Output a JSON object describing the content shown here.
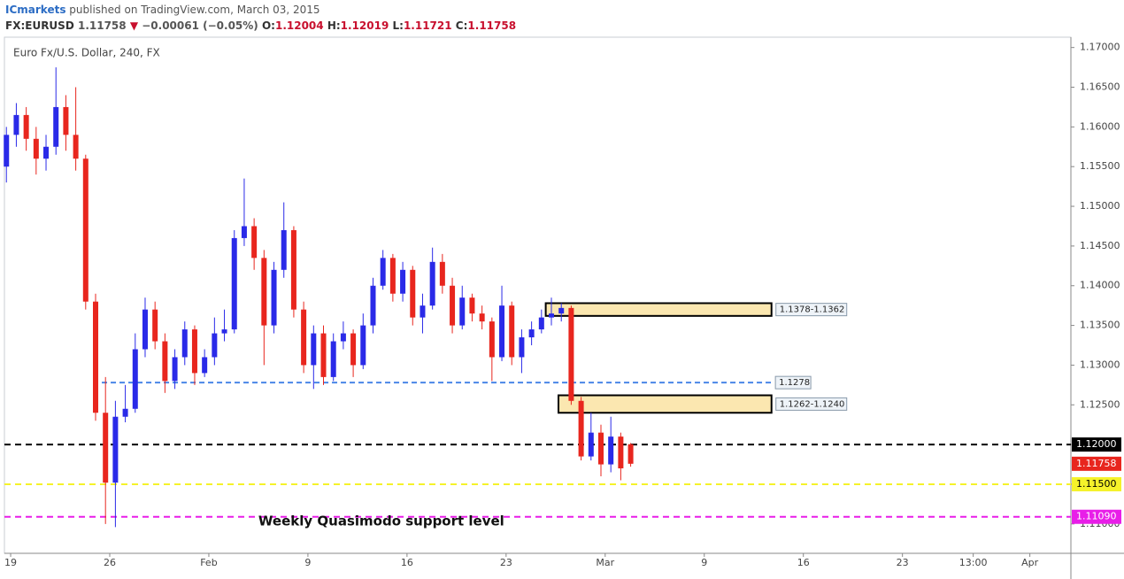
{
  "header": {
    "publisher": "ICmarkets",
    "published": "published on TradingView.com, March 03, 2015",
    "symbol": "FX:EURUSD",
    "change": "−0.00061 (−0.05%)",
    "ohlc_labels": [
      "O:",
      "H:",
      "L:",
      "C:"
    ]
  },
  "chart_data": {
    "type": "candlestick",
    "title": "Euro Fx/U.S. Dollar, 240, FX",
    "up_color": "#2a2ae8",
    "down_color": "#e8261e",
    "x": [
      -0.3,
      0.4,
      1.1,
      1.8,
      2.5,
      3.2,
      3.9,
      4.6,
      5.3,
      6,
      6.7,
      7.4,
      8.1,
      8.8,
      9.5,
      10.2,
      10.9,
      11.6,
      12.3,
      13,
      13.7,
      14.4,
      15.1,
      15.8,
      16.5,
      17.2,
      17.9,
      18.6,
      19.3,
      20,
      20.7,
      21.4,
      22.1,
      22.8,
      23.5,
      24.2,
      24.9,
      25.6,
      26.3,
      27,
      27.7,
      28.4,
      29.1,
      29.8,
      30.5,
      31.2,
      31.9,
      32.6,
      33.3,
      34,
      34.7,
      35.4,
      36.1,
      36.8,
      37.5,
      38.2,
      38.9,
      39.6,
      40.3,
      41,
      41.7,
      42.4,
      43.1,
      43.8
    ],
    "open": [
      1.155,
      1.159,
      1.1615,
      1.1585,
      1.156,
      1.1575,
      1.1625,
      1.159,
      1.156,
      1.138,
      1.124,
      1.1152,
      1.1235,
      1.1245,
      1.132,
      1.137,
      1.133,
      1.128,
      1.131,
      1.1345,
      1.129,
      1.131,
      1.134,
      1.1345,
      1.146,
      1.1475,
      1.1435,
      1.135,
      1.142,
      1.147,
      1.137,
      1.13,
      1.134,
      1.1285,
      1.133,
      1.134,
      1.13,
      1.135,
      1.14,
      1.1435,
      1.139,
      1.142,
      1.136,
      1.1375,
      1.143,
      1.14,
      1.135,
      1.1385,
      1.1365,
      1.1355,
      1.131,
      1.1375,
      1.131,
      1.1335,
      1.1345,
      1.136,
      1.1365,
      1.1372,
      1.1255,
      1.1185,
      1.1215,
      1.1175,
      1.121,
      1.12004
    ],
    "high": [
      1.16,
      1.163,
      1.1625,
      1.16,
      1.159,
      1.1675,
      1.164,
      1.165,
      1.1565,
      1.139,
      1.1285,
      1.1255,
      1.1275,
      1.134,
      1.1385,
      1.138,
      1.134,
      1.132,
      1.1355,
      1.135,
      1.132,
      1.136,
      1.137,
      1.147,
      1.1535,
      1.1485,
      1.1445,
      1.143,
      1.1505,
      1.1475,
      1.138,
      1.135,
      1.135,
      1.134,
      1.1355,
      1.1345,
      1.1365,
      1.141,
      1.1445,
      1.144,
      1.143,
      1.1425,
      1.139,
      1.1448,
      1.144,
      1.141,
      1.14,
      1.139,
      1.1375,
      1.136,
      1.14,
      1.138,
      1.1345,
      1.1355,
      1.137,
      1.1385,
      1.1378,
      1.1375,
      1.126,
      1.124,
      1.1225,
      1.1235,
      1.1215,
      1.12019
    ],
    "low": [
      1.153,
      1.1575,
      1.157,
      1.154,
      1.1545,
      1.1565,
      1.157,
      1.1545,
      1.137,
      1.123,
      1.11,
      1.1096,
      1.1228,
      1.124,
      1.131,
      1.132,
      1.1265,
      1.127,
      1.13,
      1.1275,
      1.1285,
      1.13,
      1.133,
      1.134,
      1.145,
      1.142,
      1.13,
      1.134,
      1.141,
      1.136,
      1.129,
      1.127,
      1.1275,
      1.128,
      1.132,
      1.1285,
      1.1295,
      1.134,
      1.1395,
      1.138,
      1.138,
      1.135,
      1.134,
      1.137,
      1.139,
      1.134,
      1.1345,
      1.1355,
      1.1345,
      1.128,
      1.1305,
      1.13,
      1.129,
      1.1325,
      1.134,
      1.135,
      1.1355,
      1.125,
      1.118,
      1.118,
      1.116,
      1.1165,
      1.1155,
      1.11721
    ],
    "close": [
      1.159,
      1.1615,
      1.1585,
      1.156,
      1.1575,
      1.1625,
      1.159,
      1.156,
      1.138,
      1.124,
      1.1152,
      1.1235,
      1.1245,
      1.132,
      1.137,
      1.133,
      1.128,
      1.131,
      1.1345,
      1.129,
      1.131,
      1.134,
      1.1345,
      1.146,
      1.1475,
      1.1435,
      1.135,
      1.142,
      1.147,
      1.137,
      1.13,
      1.134,
      1.1285,
      1.133,
      1.134,
      1.13,
      1.135,
      1.14,
      1.1435,
      1.139,
      1.142,
      1.136,
      1.1375,
      1.143,
      1.14,
      1.135,
      1.1385,
      1.1365,
      1.1355,
      1.131,
      1.1375,
      1.131,
      1.1335,
      1.1345,
      1.136,
      1.1365,
      1.1372,
      1.1255,
      1.1185,
      1.1215,
      1.1175,
      1.121,
      1.117,
      1.11758
    ],
    "xlim": [
      -0.44,
      74.9
    ],
    "xticks": [
      {
        "value": 0,
        "label": "19"
      },
      {
        "value": 7,
        "label": "26"
      },
      {
        "value": 14,
        "label": "Feb"
      },
      {
        "value": 21,
        "label": "9"
      },
      {
        "value": 28,
        "label": "16"
      },
      {
        "value": 35,
        "label": "23"
      },
      {
        "value": 42,
        "label": "Mar"
      },
      {
        "value": 49,
        "label": "9"
      },
      {
        "value": 56,
        "label": "16"
      },
      {
        "value": 63,
        "label": "23"
      },
      {
        "value": 68,
        "label": "13:00"
      },
      {
        "value": 72,
        "label": "Apr"
      }
    ],
    "ylim": [
      1.1063,
      1.1713
    ],
    "yticks": [
      {
        "value": 1.11,
        "label": "1.11000"
      },
      {
        "value": 1.115,
        "label": "1.11500"
      },
      {
        "value": 1.12,
        "label": "1.12000"
      },
      {
        "value": 1.125,
        "label": "1.12500"
      },
      {
        "value": 1.13,
        "label": "1.13000"
      },
      {
        "value": 1.135,
        "label": "1.13500"
      },
      {
        "value": 1.14,
        "label": "1.14000"
      },
      {
        "value": 1.145,
        "label": "1.14500"
      },
      {
        "value": 1.15,
        "label": "1.15000"
      },
      {
        "value": 1.155,
        "label": "1.15500"
      },
      {
        "value": 1.16,
        "label": "1.16000"
      },
      {
        "value": 1.165,
        "label": "1.16500"
      },
      {
        "value": 1.17,
        "label": "1.17000"
      }
    ],
    "levels": [
      {
        "price": 1.12,
        "label": "1.12000",
        "color": "#000000",
        "tag_text": "#ffffff"
      },
      {
        "price": 1.115,
        "label": "1.11500",
        "color": "#f5f22a",
        "tag_text": "#000000"
      },
      {
        "price": 1.1109,
        "label": "1.11090",
        "color": "#e81ee8",
        "tag_text": "#ffffff"
      }
    ],
    "lines": [
      {
        "price": 1.1278,
        "label": "1.1278",
        "color": "#4a86e8",
        "x": [
          6.44,
          53.9
        ]
      }
    ],
    "zones": [
      {
        "top": 1.1378,
        "bottom": 1.1362,
        "x": [
          37.8,
          53.75
        ],
        "label": "1.1378-1.1362"
      },
      {
        "top": 1.1262,
        "bottom": 1.124,
        "x": [
          38.7,
          53.75
        ],
        "label": "1.1262-1.1240"
      }
    ],
    "annotation": {
      "text": "Weekly Quasimodo support level",
      "x": 17.5,
      "price": 1.1103
    }
  }
}
